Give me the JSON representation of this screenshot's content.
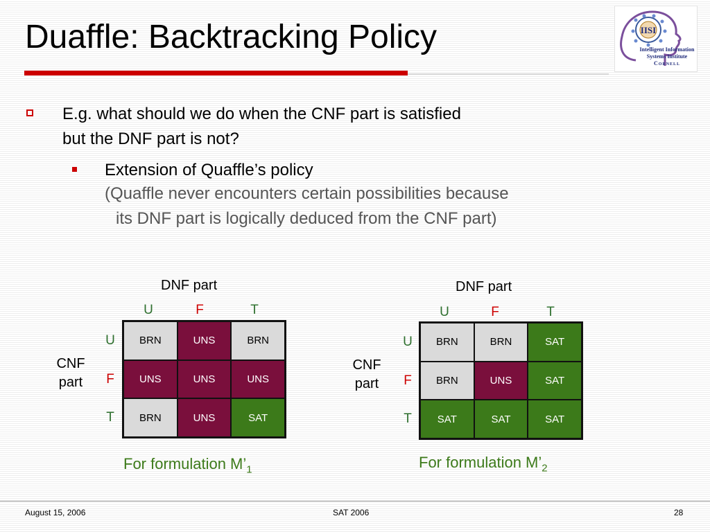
{
  "slide": {
    "title": "Duaffle: Backtracking Policy",
    "logo": {
      "line1": "Intelligent Information",
      "line2": "Systems Institute",
      "line3": "Cornell"
    },
    "bullet1": {
      "line1": "E.g. what should we do when the CNF part is satisfied",
      "line2": "but the DNF part is not?"
    },
    "bullet2": {
      "text": "Extension of Quaffle’s policy",
      "sub_line1": "(Quaffle never encounters certain possibilities because",
      "sub_line2": "its DNF part is logically deduced from the CNF part)"
    },
    "colors": {
      "accent_red": "#cc0000",
      "uns": "#7a0f3c",
      "sat": "#3c7a1a",
      "brn": "#dadada"
    },
    "tables": [
      {
        "dnf_label": "DNF part",
        "cnf_label_line1": "CNF",
        "cnf_label_line2": "part",
        "col_headers": [
          "U",
          "F",
          "T"
        ],
        "row_headers": [
          "U",
          "F",
          "T"
        ],
        "cells": [
          [
            "BRN",
            "UNS",
            "BRN"
          ],
          [
            "UNS",
            "UNS",
            "UNS"
          ],
          [
            "BRN",
            "UNS",
            "SAT"
          ]
        ],
        "caption": "For formulation M’",
        "caption_sub": "1"
      },
      {
        "dnf_label": "DNF part",
        "cnf_label_line1": "CNF",
        "cnf_label_line2": "part",
        "col_headers": [
          "U",
          "F",
          "T"
        ],
        "row_headers": [
          "U",
          "F",
          "T"
        ],
        "cells": [
          [
            "BRN",
            "BRN",
            "SAT"
          ],
          [
            "BRN",
            "UNS",
            "SAT"
          ],
          [
            "SAT",
            "SAT",
            "SAT"
          ]
        ],
        "caption": "For formulation M’",
        "caption_sub": "2"
      }
    ],
    "footer": {
      "date": "August 15, 2006",
      "event": "SAT 2006",
      "page": "28"
    }
  }
}
